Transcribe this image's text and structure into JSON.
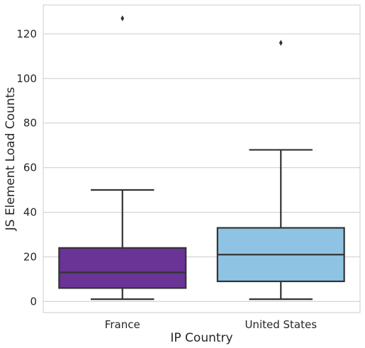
{
  "chart_data": {
    "type": "box",
    "title": "",
    "xlabel": "IP Country",
    "ylabel": "JS Element Load Counts",
    "ylim": [
      -5,
      133
    ],
    "yticks": [
      0,
      20,
      40,
      60,
      80,
      100,
      120
    ],
    "grid": "horizontal",
    "categories": [
      "France",
      "United States"
    ],
    "boxes": [
      {
        "category": "France",
        "whisker_low": 1,
        "q1": 6,
        "median": 13,
        "q3": 24,
        "whisker_high": 50,
        "outliers": [
          127
        ],
        "color": "#6a3396"
      },
      {
        "category": "United States",
        "whisker_low": 1,
        "q1": 9,
        "median": 21,
        "q3": 33,
        "whisker_high": 68,
        "outliers": [
          116
        ],
        "color": "#8fc3e4"
      }
    ]
  }
}
